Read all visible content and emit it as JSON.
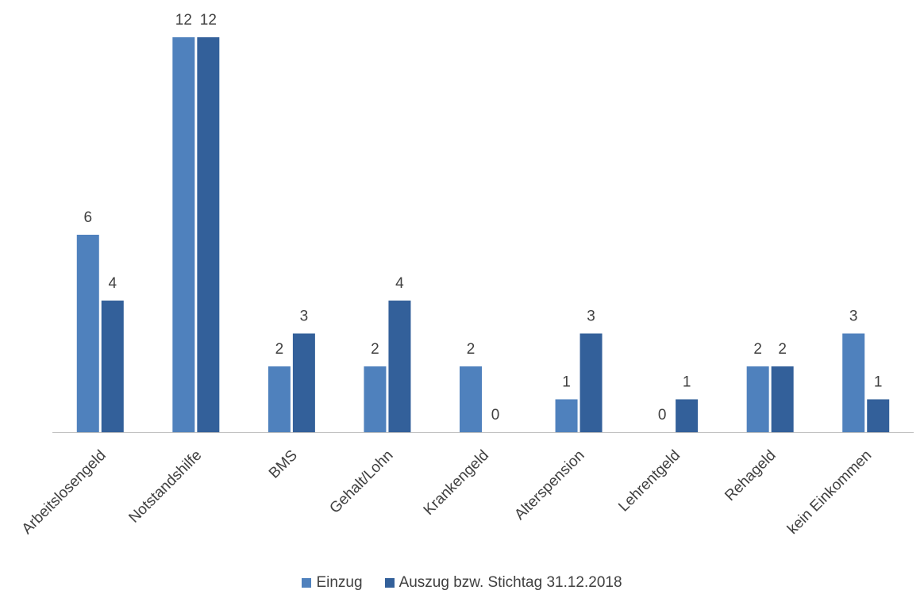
{
  "chart_data": {
    "type": "bar",
    "categories": [
      "Arbeitslosengeld",
      "Notstandshilfe",
      "BMS",
      "Gehalt/Lohn",
      "Krankengeld",
      "Alterspension",
      "Lehrentgeld",
      "Rehageld",
      "kein Einkommen"
    ],
    "series": [
      {
        "name": "Einzug",
        "color": "#4f81bd",
        "values": [
          6,
          12,
          2,
          2,
          2,
          1,
          0,
          2,
          3
        ]
      },
      {
        "name": "Auszug bzw. Stichtag 31.12.2018",
        "color": "#33609a",
        "values": [
          4,
          12,
          3,
          4,
          0,
          3,
          1,
          2,
          1
        ]
      }
    ],
    "ylim": [
      0,
      12
    ],
    "grid": false,
    "legend_position": "bottom",
    "data_labels": true
  }
}
